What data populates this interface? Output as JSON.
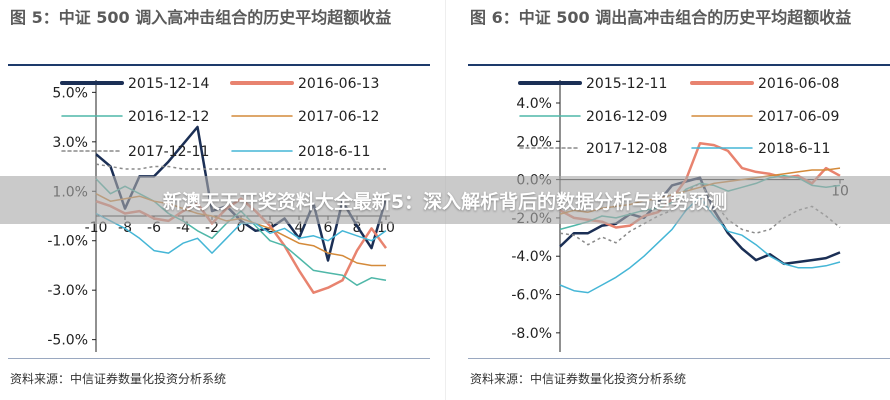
{
  "banner": "新澳天天开奖资料大全最新5：深入解析背后的数据分析与趋势预测",
  "chart_data": [
    {
      "type": "line",
      "title": "图 5：中证 500 调入高冲击组合的历史平均超额收益",
      "source": "资料来源：中信证券数量化投资分析系统",
      "x": [
        -10,
        -9,
        -8,
        -7,
        -6,
        -5,
        -4,
        -3,
        -2,
        -1,
        0,
        1,
        2,
        3,
        4,
        5,
        6,
        7,
        8,
        9,
        10
      ],
      "xticks": [
        -10,
        -8,
        -6,
        -4,
        -2,
        0,
        2,
        4,
        6,
        8,
        10
      ],
      "xtick_labels": [
        "-10",
        "-8",
        "-6",
        "-4",
        "-2",
        "0",
        "2",
        "4",
        "6",
        "8",
        "10"
      ],
      "yticks": [
        5.0,
        3.0,
        1.0,
        -1.0,
        -3.0,
        -5.0
      ],
      "ytick_labels": [
        "5.0%",
        "3.0%",
        "1.0%",
        "-1.0%",
        "-3.0%",
        "-5.0%"
      ],
      "ylim": [
        -5.5,
        5.5
      ],
      "grid": false,
      "legend": "top",
      "series": [
        {
          "name": "2015-12-14",
          "color": "#1b2f55",
          "width": 2.5,
          "values": [
            2.5,
            2.0,
            0.3,
            1.6,
            1.6,
            2.2,
            2.9,
            3.6,
            0.2,
            0.4,
            -0.2,
            -0.6,
            -0.5,
            -0.1,
            -0.9,
            0.5,
            -1.8,
            0.6,
            -0.4,
            -1.3,
            0.7
          ]
        },
        {
          "name": "2016-06-13",
          "color": "#e8836f",
          "width": 2.5,
          "values": [
            0.6,
            0.4,
            0.1,
            0.2,
            -0.1,
            -0.2,
            0.2,
            0.5,
            -0.3,
            0.3,
            0.7,
            0.2,
            -0.4,
            -1.2,
            -2.2,
            -3.1,
            -2.9,
            -2.6,
            -1.4,
            -0.5,
            -1.3
          ]
        },
        {
          "name": "2016-12-12",
          "color": "#4fb7a8",
          "width": 1.5,
          "values": [
            1.5,
            0.9,
            1.2,
            0.9,
            0.6,
            0.1,
            -0.2,
            -0.6,
            -0.9,
            -0.3,
            0.2,
            -0.4,
            -1.0,
            -1.2,
            -1.7,
            -2.2,
            -2.3,
            -2.4,
            -2.8,
            -2.5,
            -2.6
          ]
        },
        {
          "name": "2017-06-12",
          "color": "#d48a3a",
          "width": 1.5,
          "values": [
            0.9,
            0.6,
            0.7,
            0.8,
            0.6,
            0.5,
            0.3,
            0.1,
            0.0,
            -0.2,
            -0.1,
            -0.3,
            -0.5,
            -0.8,
            -1.1,
            -1.2,
            -1.5,
            -1.6,
            -1.9,
            -2.0,
            -2.0
          ]
        },
        {
          "name": "2017-12-11",
          "color": "#8a8a8a",
          "width": 1.5,
          "dash": "3,3",
          "values": [
            2.1,
            2.0,
            1.9,
            1.9,
            2.0,
            2.0,
            1.9,
            1.9,
            1.9,
            1.9,
            1.9,
            1.9,
            1.9,
            1.9,
            1.9,
            1.9,
            1.9,
            1.9,
            1.9,
            1.9,
            1.9
          ]
        },
        {
          "name": "2018-6-11",
          "color": "#45b6d6",
          "width": 1.5,
          "values": [
            0.1,
            -0.2,
            -0.5,
            -0.9,
            -1.4,
            -1.5,
            -1.1,
            -0.9,
            -1.5,
            -0.9,
            -0.3,
            -0.3,
            -0.7,
            -0.5,
            -0.9,
            -0.8,
            -1.0,
            -0.6,
            -0.8,
            -1.0,
            -0.6
          ]
        }
      ]
    },
    {
      "type": "line",
      "title": "图 6：中证 500 调出高冲击组合的历史平均超额收益",
      "source": "资料来源：中信证券数量化投资分析系统",
      "x": [
        -10,
        -9,
        -8,
        -7,
        -6,
        -5,
        -4,
        -3,
        -2,
        -1,
        0,
        1,
        2,
        3,
        4,
        5,
        6,
        7,
        8,
        9,
        10
      ],
      "xticks": [
        10
      ],
      "xtick_labels": [
        "10"
      ],
      "yticks": [
        4.0,
        2.0,
        0.0,
        -2.0,
        -4.0,
        -6.0,
        -8.0
      ],
      "ytick_labels": [
        "4.0%",
        "2.0%",
        "0.0%",
        "-2.0%",
        "-4.0%",
        "-6.0%",
        "-8.0%"
      ],
      "ylim": [
        -9.0,
        5.2
      ],
      "grid": false,
      "legend": "top",
      "series": [
        {
          "name": "2015-12-11",
          "color": "#1b2f55",
          "width": 2.5,
          "values": [
            -3.5,
            -2.8,
            -2.8,
            -2.4,
            -2.3,
            -1.8,
            -2.0,
            -1.2,
            -0.3,
            -0.1,
            0.1,
            -1.6,
            -2.8,
            -3.6,
            -4.2,
            -3.9,
            -4.4,
            -4.3,
            -4.2,
            -4.1,
            -3.8
          ]
        },
        {
          "name": "2016-06-08",
          "color": "#e8836f",
          "width": 2.5,
          "values": [
            -1.6,
            -2.0,
            -2.1,
            -2.2,
            -2.5,
            -2.4,
            -1.9,
            -1.7,
            -1.0,
            0.0,
            1.9,
            1.8,
            1.5,
            0.6,
            0.4,
            0.3,
            0.1,
            0.2,
            -0.2,
            0.6,
            0.2
          ]
        },
        {
          "name": "2016-12-09",
          "color": "#4fb7a8",
          "width": 1.5,
          "values": [
            -2.6,
            -2.4,
            -2.2,
            -1.9,
            -2.0,
            -1.8,
            -1.6,
            -1.5,
            -1.2,
            -0.5,
            -0.2,
            -0.3,
            -0.6,
            -0.4,
            -0.2,
            0.1,
            0.2,
            0.1,
            -0.3,
            -0.4,
            -0.3
          ]
        },
        {
          "name": "2017-06-09",
          "color": "#d48a3a",
          "width": 1.5,
          "values": [
            -1.8,
            -1.6,
            -1.7,
            -1.5,
            -1.4,
            -1.3,
            -1.1,
            -1.0,
            -0.8,
            -0.6,
            -0.4,
            -0.2,
            -0.1,
            0.0,
            0.1,
            0.2,
            0.3,
            0.4,
            0.5,
            0.5,
            0.6
          ]
        },
        {
          "name": "2017-12-08",
          "color": "#8a8a8a",
          "width": 1.5,
          "dash": "3,3",
          "values": [
            -2.8,
            -2.9,
            -3.4,
            -3.0,
            -3.3,
            -2.7,
            -2.3,
            -1.9,
            -1.6,
            -0.6,
            -0.2,
            -1.2,
            -2.1,
            -2.6,
            -2.8,
            -2.6,
            -2.0,
            -1.6,
            -1.4,
            -1.9,
            -2.5
          ]
        },
        {
          "name": "2018-6-11",
          "color": "#45b6d6",
          "width": 1.5,
          "values": [
            -5.5,
            -5.8,
            -5.9,
            -5.5,
            -5.1,
            -4.6,
            -4.0,
            -3.3,
            -2.6,
            -1.6,
            -0.9,
            -1.9,
            -2.7,
            -2.9,
            -3.4,
            -4.0,
            -4.4,
            -4.6,
            -4.6,
            -4.5,
            -4.3
          ]
        }
      ]
    }
  ]
}
